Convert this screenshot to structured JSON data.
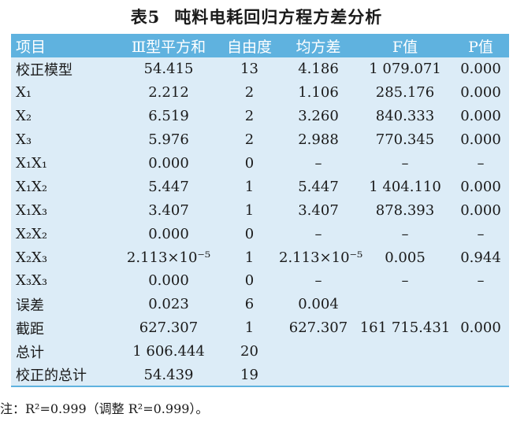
{
  "caption": {
    "number": "表5",
    "title": "吨料电耗回归方程方差分析"
  },
  "table": {
    "headers": [
      "项目",
      "Ⅲ型平方和",
      "自由度",
      "均方差",
      "F值",
      "P值"
    ],
    "rows": [
      [
        "校正模型",
        "54.415",
        "13",
        "4.186",
        "1 079.071",
        "0.000"
      ],
      [
        "X₁",
        "2.212",
        "2",
        "1.106",
        "285.176",
        "0.000"
      ],
      [
        "X₂",
        "6.519",
        "2",
        "3.260",
        "840.333",
        "0.000"
      ],
      [
        "X₃",
        "5.976",
        "2",
        "2.988",
        "770.345",
        "0.000"
      ],
      [
        "X₁X₁",
        "0.000",
        "0",
        "–",
        "–",
        "–"
      ],
      [
        "X₁X₂",
        "5.447",
        "1",
        "5.447",
        "1 404.110",
        "0.000"
      ],
      [
        "X₁X₃",
        "3.407",
        "1",
        "3.407",
        "878.393",
        "0.000"
      ],
      [
        "X₂X₂",
        "0.000",
        "0",
        "–",
        "–",
        "–"
      ],
      [
        "X₂X₃",
        "2.113×10⁻⁵",
        "1",
        "2.113×10⁻⁵",
        "0.005",
        "0.944"
      ],
      [
        "X₃X₃",
        "0.000",
        "0",
        "–",
        "–",
        "–"
      ],
      [
        "误差",
        "0.023",
        "6",
        "0.004",
        "",
        ""
      ],
      [
        "截距",
        "627.307",
        "1",
        "627.307",
        "161 715.431",
        "0.000"
      ],
      [
        "总计",
        "1 606.444",
        "20",
        "",
        "",
        ""
      ],
      [
        "校正的总计",
        "54.439",
        "19",
        "",
        "",
        ""
      ]
    ]
  },
  "footnote": "注：R²=0.999（调整 R²=0.999）。",
  "colors": {
    "header_bg": "#5fb2df",
    "row_bg": "#dcecf7",
    "header_text": "#ffffff"
  }
}
